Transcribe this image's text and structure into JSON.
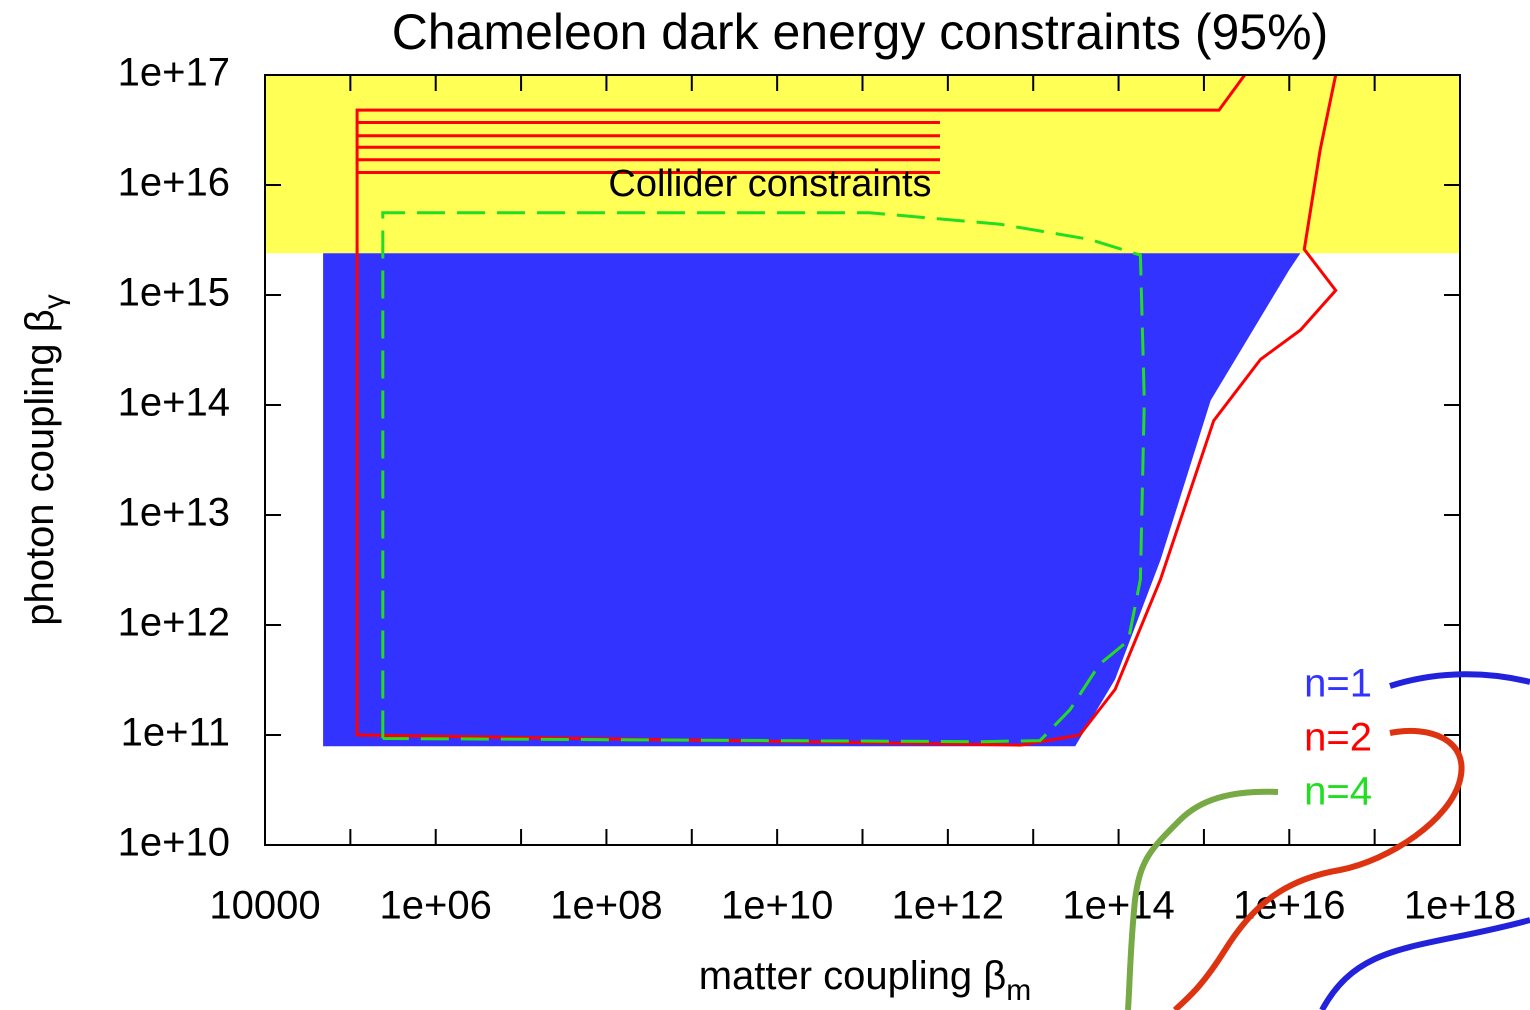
{
  "chart_data": {
    "type": "region",
    "title": "Chameleon dark energy constraints (95%)",
    "x_label": "matter coupling β",
    "x_label_sub": "m",
    "y_label": "photon coupling β",
    "y_label_sub": "γ",
    "log_x": true,
    "log_y": true,
    "xlim": [
      10000,
      1e+18
    ],
    "ylim": [
      10000000000.0,
      1e+17
    ],
    "xticks": [
      10000,
      {
        "value": 1000000.0,
        "label": "1e+06"
      },
      {
        "value": 100000000.0,
        "label": "1e+08"
      },
      {
        "value": 10000000000.0,
        "label": "1e+10"
      },
      {
        "value": 1000000000000.0,
        "label": "1e+12"
      },
      {
        "value": 100000000000000.0,
        "label": "1e+14"
      },
      {
        "value": 1e+16,
        "label": "1e+16"
      },
      {
        "value": 1e+18,
        "label": "1e+18"
      }
    ],
    "xminorticks": [
      100000.0,
      10000000.0,
      1000000000.0,
      100000000000.0,
      10000000000000.0,
      1000000000000000.0,
      1e+17
    ],
    "yticks": [
      {
        "value": 10000000000.0,
        "label": "1e+10"
      },
      {
        "value": 100000000000.0,
        "label": "1e+11"
      },
      {
        "value": 1000000000000.0,
        "label": "1e+12"
      },
      {
        "value": 10000000000000.0,
        "label": "1e+13"
      },
      {
        "value": 100000000000000.0,
        "label": "1e+14"
      },
      {
        "value": 1000000000000000.0,
        "label": "1e+15"
      },
      {
        "value": 1e+16,
        "label": "1e+16"
      },
      {
        "value": 1e+17,
        "label": "1e+17"
      }
    ],
    "band": {
      "label": "Collider constraints",
      "color": "#ffff55",
      "ylim": [
        2400000000000000.0,
        1e+17
      ]
    },
    "series": [
      {
        "name": "n=1",
        "color": "#3333ff",
        "fill": true,
        "x": [
          48000,
          48000,
          1.35e+16,
          1e+16,
          1200000000000000.0,
          310000000000000.0,
          91000000000000.0,
          31000000000000.0
        ],
        "values": [
          79000000000.0,
          2400000000000000.0,
          2400000000000000.0,
          1700000000000000.0,
          110000000000000.0,
          3900000000000.0,
          320000000000.0,
          79000000000.0
        ]
      },
      {
        "name": "n=2",
        "color": "#ff0000",
        "fill": false,
        "dashed": false,
        "x": [
          3000000000000000.0,
          1500000000000000.0,
          120000.0,
          120000.0,
          7100000000000.0,
          35000000000000.0,
          91000000000000.0,
          310000000000000.0,
          1300000000000000.0,
          4600000000000000.0,
          1.35e+16,
          3.5e+16,
          1.5e+16,
          2.3e+16,
          3.5e+16,
          null,
          120000.0,
          810000000000.0,
          null,
          120000.0,
          810000000000.0,
          null,
          120000.0,
          810000000000.0,
          null,
          120000.0,
          810000000000.0,
          null,
          120000.0,
          810000000000.0
        ],
        "values": [
          1e+17,
          4.8e+16,
          4.8e+16,
          100000000000.0,
          81000000000.0,
          100000000000.0,
          260000000000.0,
          2600000000000.0,
          72000000000000.0,
          260000000000000.0,
          480000000000000.0,
          1100000000000000.0,
          2600000000000000.0,
          2.1e+16,
          1e+17,
          null,
          3.7e+16,
          3.7e+16,
          null,
          2.8e+16,
          2.8e+16,
          null,
          2.2e+16,
          2.2e+16,
          null,
          1.7e+16,
          1.7e+16,
          null,
          1.3e+16,
          1.3e+16
        ]
      },
      {
        "name": "n=4",
        "color": "#22dd22",
        "fill": false,
        "dashed": true,
        "x": [
          240000.0,
          240000.0,
          120000000000.0,
          4100000000000.0,
          46000000000000.0,
          180000000000000.0,
          200000000000000.0,
          180000000000000.0,
          130000000000000.0,
          60000000000000.0,
          27000000000000.0,
          12000000000000.0,
          2400000000000.0,
          240000.0
        ],
        "values": [
          93000000000.0,
          5600000000000000.0,
          5600000000000000.0,
          4400000000000000.0,
          3200000000000000.0,
          2300000000000000.0,
          110000000000000.0,
          2600000000000.0,
          720000000000.0,
          440000000000.0,
          170000000000.0,
          89000000000.0,
          87000000000.0,
          93000000000.0
        ]
      }
    ]
  }
}
